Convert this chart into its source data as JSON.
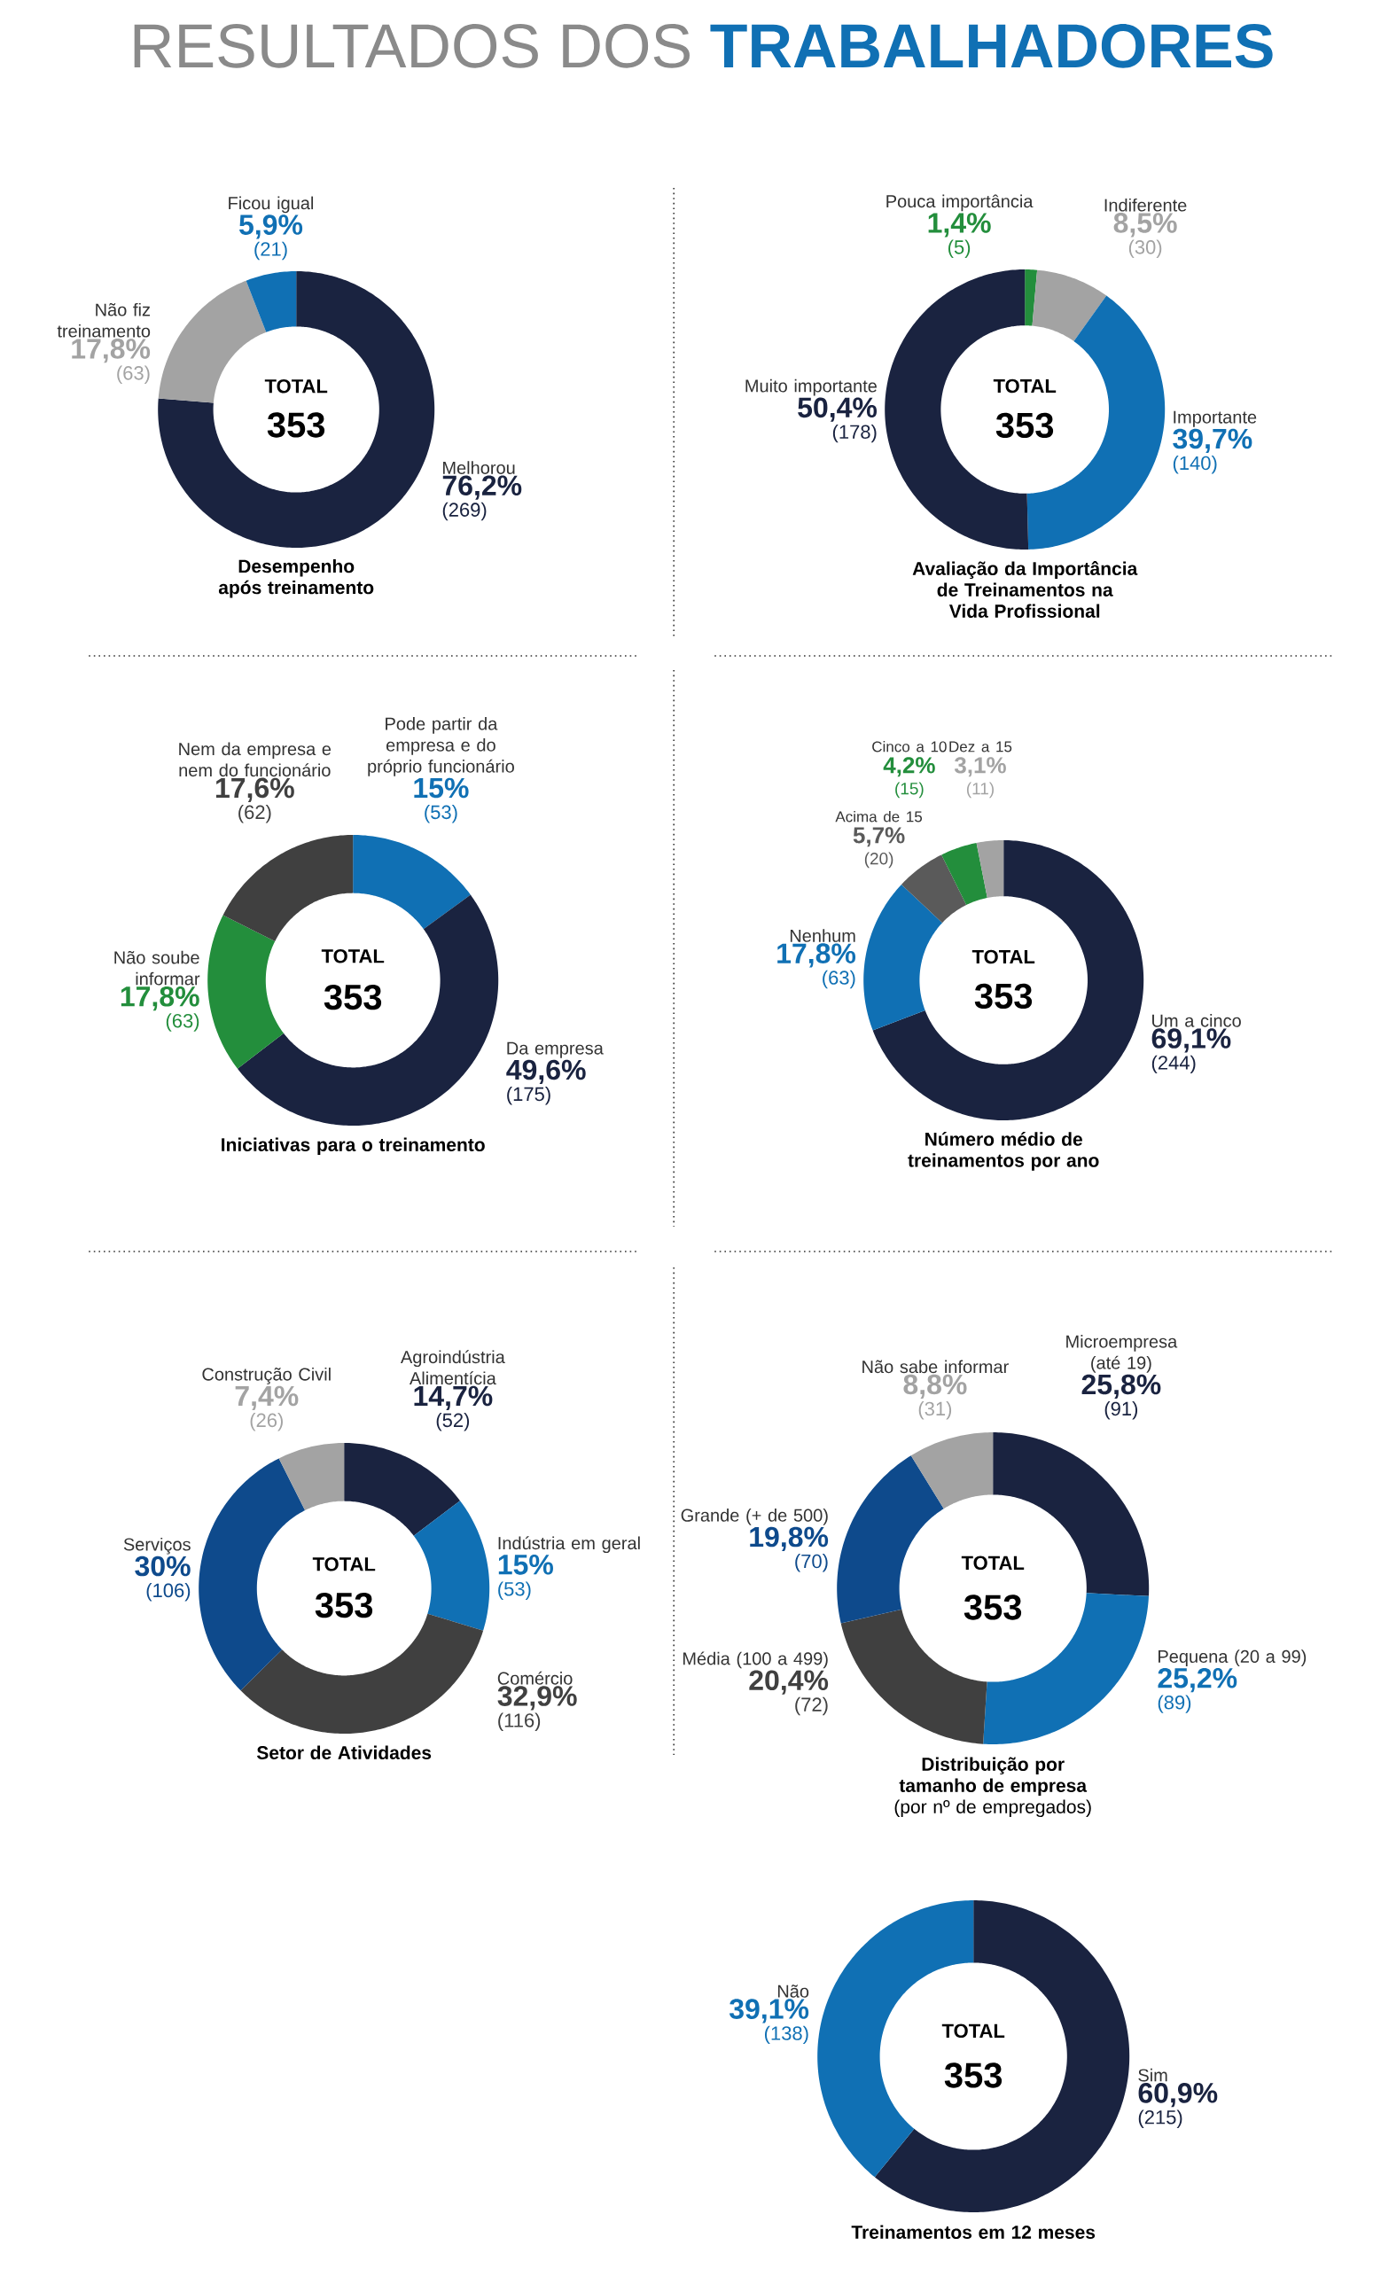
{
  "chart_data": [
    {
      "type": "other",
      "title": "RESULTADOS DOS **TRABALHADORES**"
    },
    {
      "type": "donut",
      "title": "Desempenho após treinamento",
      "categories": [
        "Melhorou",
        "Não fiz treinamento",
        "Ficou igual"
      ],
      "values": [
        76.2,
        17.8,
        5.9
      ],
      "colors": [
        "#1a2340",
        "#a3a3a3",
        "#1070b4"
      ],
      "value_labels": [
        "76,2%",
        "17,8%",
        "5,9%"
      ],
      "annotations": [
        "TOTAL",
        "353",
        "(269)",
        "(63)",
        "(21)"
      ]
    },
    {
      "type": "donut",
      "title": "Avaliação da Importância de Treinamentos na Vida Profissional",
      "categories": [
        "Pouca importância",
        "Indiferente",
        "Importante",
        "Muito importante"
      ],
      "values": [
        1.4,
        8.5,
        39.7,
        50.4
      ],
      "colors": [
        "#238e3c",
        "#a3a3a3",
        "#1070b4",
        "#1a2340"
      ],
      "value_labels": [
        "1,4%",
        "8,5%",
        "39,7%",
        "50,4%"
      ],
      "annotations": [
        "TOTAL",
        "353",
        "(5)",
        "(30)",
        "(140)",
        "(178)"
      ]
    },
    {
      "type": "donut",
      "title": "Iniciativas para o treinamento",
      "categories": [
        "Pode partir da empresa e do próprio funcionário",
        "Da empresa",
        "Não soube informar",
        "Nem da empresa e nem do funcionário"
      ],
      "values": [
        15,
        49.6,
        17.8,
        17.6
      ],
      "colors": [
        "#1070b4",
        "#1a2340",
        "#238e3c",
        "#404040"
      ],
      "value_labels": [
        "15%",
        "49,6%",
        "17,8%",
        "17,6%"
      ],
      "annotations": [
        "TOTAL",
        "353",
        "(53)",
        "(175)",
        "(63)",
        "(62)"
      ]
    },
    {
      "type": "donut",
      "title": "Número médio de treinamentos por ano",
      "categories": [
        "Um a cinco",
        "Nenhum",
        "Acima de 15",
        "Cinco a 10",
        "Dez a 15"
      ],
      "values": [
        69.1,
        17.8,
        5.7,
        4.2,
        3.1
      ],
      "colors": [
        "#1a2340",
        "#1070b4",
        "#5a5a5a",
        "#238e3c",
        "#a3a3a3"
      ],
      "value_labels": [
        "69,1%",
        "17,8%",
        "5,7%",
        "4,2%",
        "3,1%"
      ],
      "annotations": [
        "TOTAL",
        "353",
        "(244)",
        "(63)",
        "(20)",
        "(15)",
        "(11)"
      ]
    },
    {
      "type": "donut",
      "title": "Setor de Atividades",
      "categories": [
        "Agroindústria Alimentícia",
        "Indústria em geral",
        "Comércio",
        "Serviços",
        "Construção Civil"
      ],
      "values": [
        14.7,
        15,
        32.9,
        30,
        7.4
      ],
      "colors": [
        "#1a2340",
        "#1070b4",
        "#404040",
        "#0e4a8c",
        "#a3a3a3"
      ],
      "value_labels": [
        "14,7%",
        "15%",
        "32,9%",
        "30%",
        "7,4%"
      ],
      "annotations": [
        "TOTAL",
        "353",
        "(52)",
        "(53)",
        "(116)",
        "(106)",
        "(26)"
      ]
    },
    {
      "type": "donut",
      "title": "Distribuição por tamanho de empresa",
      "subtitle": "(por nº de empregados)",
      "categories": [
        "Microempresa (até 19)",
        "Pequena (20 a 99)",
        "Média (100 a 499)",
        "Grande (+ de 500)",
        "Não sabe informar"
      ],
      "values": [
        25.8,
        25.2,
        20.4,
        19.8,
        8.8
      ],
      "colors": [
        "#1a2340",
        "#1070b4",
        "#404040",
        "#0e4a8c",
        "#a3a3a3"
      ],
      "value_labels": [
        "25,8%",
        "25,2%",
        "20,4%",
        "19,8%",
        "8,8%"
      ],
      "annotations": [
        "TOTAL",
        "353",
        "(91)",
        "(89)",
        "(72)",
        "(70)",
        "(31)"
      ]
    },
    {
      "type": "donut",
      "title": "Treinamentos em 12 meses",
      "categories": [
        "Sim",
        "Não"
      ],
      "values": [
        60.9,
        39.1
      ],
      "colors": [
        "#1a2340",
        "#1070b4"
      ],
      "value_labels": [
        "60,9%",
        "39,1%"
      ],
      "annotations": [
        "TOTAL",
        "353",
        "(215)",
        "(138)"
      ]
    }
  ]
}
